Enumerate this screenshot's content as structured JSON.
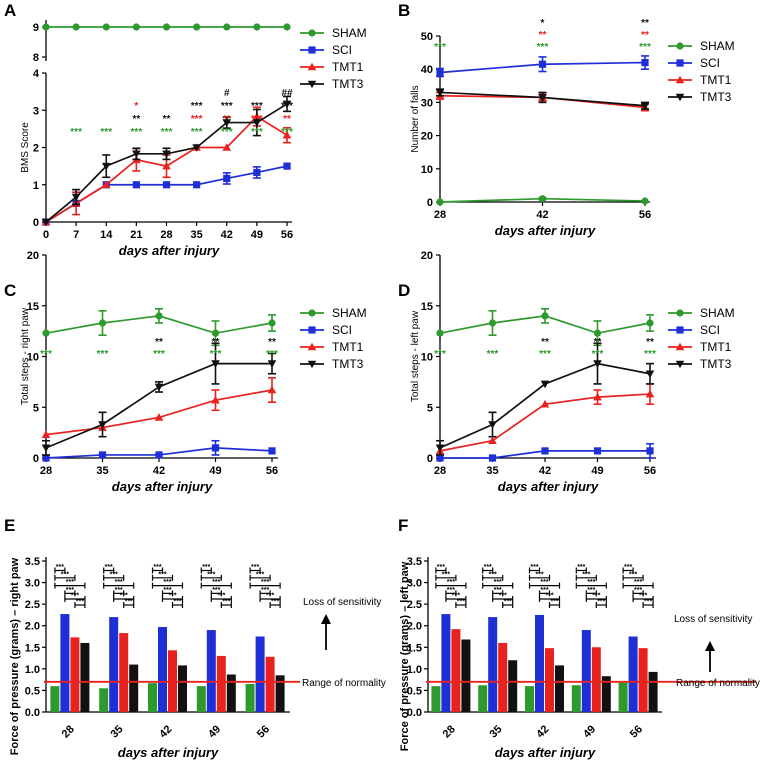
{
  "colors": {
    "SHAM": "#2e9a2e",
    "SCI": "#1f2fd6",
    "TMT1": "#e8221e",
    "TMT3": "#111111",
    "normality": "#e8221e"
  },
  "chart_data": [
    {
      "panel": "A",
      "type": "line",
      "xlabel": "days after injury",
      "ylabel": "BMS Score",
      "x": [
        0,
        7,
        14,
        21,
        28,
        35,
        42,
        49,
        56
      ],
      "xticks": [
        "0",
        "7",
        "14",
        "21",
        "28",
        "35",
        "42",
        "49",
        "56"
      ],
      "ylim": [
        0,
        4
      ],
      "yticks": [
        "0",
        "1",
        "2",
        "3",
        "4"
      ],
      "top_ticks": [
        "8",
        "9"
      ],
      "legend": [
        "SHAM",
        "SCI",
        "TMT1",
        "TMT3"
      ],
      "series": [
        {
          "name": "SHAM",
          "values": [
            9,
            9,
            9,
            9,
            9,
            9,
            9,
            9,
            9
          ],
          "errors": [
            0,
            0,
            0,
            0,
            0,
            0,
            0,
            0,
            0
          ]
        },
        {
          "name": "SCI",
          "values": [
            0,
            0.5,
            1.0,
            1.0,
            1.0,
            1.0,
            1.17,
            1.33,
            1.5
          ],
          "errors": [
            0,
            0,
            0,
            0,
            0,
            0,
            0.15,
            0.15,
            0
          ]
        },
        {
          "name": "TMT1",
          "values": [
            0,
            0.5,
            1.0,
            1.67,
            1.5,
            2.0,
            2.0,
            2.83,
            2.33
          ],
          "errors": [
            0,
            0.3,
            0,
            0.3,
            0.3,
            0,
            0,
            0.25,
            0.2
          ]
        },
        {
          "name": "TMT3",
          "values": [
            0,
            0.67,
            1.5,
            1.83,
            1.83,
            2.0,
            2.67,
            2.67,
            3.17
          ],
          "errors": [
            0,
            0.2,
            0.3,
            0.15,
            0.15,
            0,
            0.15,
            0.35,
            0.2
          ]
        }
      ],
      "annotations": [
        {
          "x": 7,
          "rows": [
            {
              "t": "***",
              "c": "SHAM"
            }
          ]
        },
        {
          "x": 14,
          "rows": [
            {
              "t": "***",
              "c": "SHAM"
            }
          ]
        },
        {
          "x": 21,
          "rows": [
            {
              "t": "*",
              "c": "TMT1"
            },
            {
              "t": "**",
              "c": "TMT3"
            },
            {
              "t": "***",
              "c": "SHAM"
            }
          ]
        },
        {
          "x": 28,
          "rows": [
            {
              "t": "**",
              "c": "TMT3"
            },
            {
              "t": "***",
              "c": "SHAM"
            }
          ]
        },
        {
          "x": 35,
          "rows": [
            {
              "t": "***",
              "c": "TMT3"
            },
            {
              "t": "***",
              "c": "TMT1"
            },
            {
              "t": "***",
              "c": "SHAM"
            }
          ]
        },
        {
          "x": 42,
          "rows": [
            {
              "t": "#",
              "c": "TMT3"
            },
            {
              "t": "***",
              "c": "TMT3"
            },
            {
              "t": "**",
              "c": "TMT1"
            },
            {
              "t": "***",
              "c": "SHAM"
            }
          ]
        },
        {
          "x": 49,
          "rows": [
            {
              "t": "***",
              "c": "TMT3"
            },
            {
              "t": "***",
              "c": "TMT1"
            },
            {
              "t": "***",
              "c": "SHAM"
            }
          ]
        },
        {
          "x": 56,
          "rows": [
            {
              "t": "##",
              "c": "TMT3"
            },
            {
              "t": "***",
              "c": "TMT3"
            },
            {
              "t": "**",
              "c": "TMT1"
            },
            {
              "t": "***",
              "c": "SHAM"
            }
          ]
        }
      ]
    },
    {
      "panel": "B",
      "type": "line",
      "xlabel": "days after injury",
      "ylabel": "Number of falls",
      "x": [
        28,
        42,
        56
      ],
      "xticks": [
        "28",
        "42",
        "56"
      ],
      "ylim": [
        0,
        50
      ],
      "yticks": [
        "0",
        "10",
        "20",
        "30",
        "40",
        "50"
      ],
      "legend": [
        "SHAM",
        "SCI",
        "TMT1",
        "TMT3"
      ],
      "series": [
        {
          "name": "SHAM",
          "values": [
            0,
            1,
            0.3
          ],
          "errors": [
            0,
            0.3,
            0
          ]
        },
        {
          "name": "SCI",
          "values": [
            39,
            41.5,
            42
          ],
          "errors": [
            1.2,
            2.2,
            2.0
          ]
        },
        {
          "name": "TMT1",
          "values": [
            32,
            31.5,
            28.5
          ],
          "errors": [
            1.0,
            1.0,
            1.0
          ]
        },
        {
          "name": "TMT3",
          "values": [
            33,
            31.5,
            29
          ],
          "errors": [
            1.0,
            1.5,
            1.0
          ]
        }
      ],
      "annotations": [
        {
          "x": 28,
          "rows": [
            {
              "t": "***",
              "c": "SHAM"
            }
          ]
        },
        {
          "x": 42,
          "rows": [
            {
              "t": "*",
              "c": "TMT3"
            },
            {
              "t": "**",
              "c": "TMT1"
            },
            {
              "t": "***",
              "c": "SHAM"
            }
          ]
        },
        {
          "x": 56,
          "rows": [
            {
              "t": "**",
              "c": "TMT3"
            },
            {
              "t": "**",
              "c": "TMT1"
            },
            {
              "t": "***",
              "c": "SHAM"
            }
          ]
        }
      ]
    },
    {
      "panel": "C",
      "type": "line",
      "xlabel": "days after injury",
      "ylabel": "Total steps - right paw",
      "x": [
        28,
        35,
        42,
        49,
        56
      ],
      "xticks": [
        "28",
        "35",
        "42",
        "49",
        "56"
      ],
      "ylim": [
        0,
        20
      ],
      "yticks": [
        "0",
        "5",
        "10",
        "15",
        "20"
      ],
      "legend": [
        "SHAM",
        "SCI",
        "TMT1",
        "TMT3"
      ],
      "series": [
        {
          "name": "SHAM",
          "values": [
            12.3,
            13.3,
            14,
            12.3,
            13.3
          ],
          "errors": [
            0,
            1.2,
            0.7,
            1.2,
            0.8
          ]
        },
        {
          "name": "SCI",
          "values": [
            0,
            0.3,
            0.3,
            1.0,
            0.7
          ],
          "errors": [
            0,
            0,
            0,
            0.7,
            0
          ]
        },
        {
          "name": "TMT1",
          "values": [
            2.3,
            3.0,
            4.0,
            5.7,
            6.7
          ],
          "errors": [
            0,
            0,
            0,
            1.0,
            1.2
          ]
        },
        {
          "name": "TMT3",
          "values": [
            1.0,
            3.3,
            7.0,
            9.3,
            9.3
          ],
          "errors": [
            0.7,
            1.2,
            0.5,
            2.0,
            1.0
          ]
        }
      ],
      "annotations": [
        {
          "x": 28,
          "rows": [
            {
              "t": "***",
              "c": "SHAM"
            }
          ]
        },
        {
          "x": 35,
          "rows": [
            {
              "t": "***",
              "c": "SHAM"
            }
          ]
        },
        {
          "x": 42,
          "rows": [
            {
              "t": "**",
              "c": "TMT3"
            },
            {
              "t": "***",
              "c": "SHAM"
            }
          ]
        },
        {
          "x": 49,
          "rows": [
            {
              "t": "**",
              "c": "TMT3"
            },
            {
              "t": "***",
              "c": "SHAM"
            }
          ]
        },
        {
          "x": 56,
          "rows": [
            {
              "t": "**",
              "c": "TMT3"
            },
            {
              "t": "***",
              "c": "SHAM"
            }
          ]
        }
      ]
    },
    {
      "panel": "D",
      "type": "line",
      "xlabel": "days after injury",
      "ylabel": "Total steps - left paw",
      "x": [
        28,
        35,
        42,
        49,
        56
      ],
      "xticks": [
        "28",
        "35",
        "42",
        "49",
        "56"
      ],
      "ylim": [
        0,
        20
      ],
      "yticks": [
        "0",
        "5",
        "10",
        "15",
        "20"
      ],
      "legend": [
        "SHAM",
        "SCI",
        "TMT1",
        "TMT3"
      ],
      "series": [
        {
          "name": "SHAM",
          "values": [
            12.3,
            13.3,
            14,
            12.3,
            13.3
          ],
          "errors": [
            0,
            1.2,
            0.7,
            1.2,
            0.8
          ]
        },
        {
          "name": "SCI",
          "values": [
            0,
            0,
            0.7,
            0.7,
            0.7
          ],
          "errors": [
            0,
            0,
            0,
            0,
            0.7
          ]
        },
        {
          "name": "TMT1",
          "values": [
            0.7,
            1.7,
            5.3,
            6.0,
            6.3
          ],
          "errors": [
            0,
            0,
            0,
            0.7,
            1.0
          ]
        },
        {
          "name": "TMT3",
          "values": [
            1.0,
            3.3,
            7.3,
            9.3,
            8.3
          ],
          "errors": [
            0.7,
            1.2,
            0,
            2.0,
            1.0
          ]
        }
      ],
      "annotations": [
        {
          "x": 28,
          "rows": [
            {
              "t": "***",
              "c": "SHAM"
            }
          ]
        },
        {
          "x": 35,
          "rows": [
            {
              "t": "***",
              "c": "SHAM"
            }
          ]
        },
        {
          "x": 42,
          "rows": [
            {
              "t": "**",
              "c": "TMT3"
            },
            {
              "t": "***",
              "c": "SHAM"
            }
          ]
        },
        {
          "x": 49,
          "rows": [
            {
              "t": "**",
              "c": "TMT3"
            },
            {
              "t": "***",
              "c": "SHAM"
            }
          ]
        },
        {
          "x": 56,
          "rows": [
            {
              "t": "**",
              "c": "TMT3"
            },
            {
              "t": "***",
              "c": "SHAM"
            }
          ]
        }
      ]
    },
    {
      "panel": "E",
      "type": "bar",
      "xlabel": "days after injury",
      "ylabel": "Force of pressure (grams) – right paw",
      "categories": [
        "28",
        "35",
        "42",
        "49",
        "56"
      ],
      "ylim": [
        0,
        3.5
      ],
      "yticks": [
        "0.0",
        "0.5",
        "1.0",
        "1.5",
        "2.0",
        "2.5",
        "3.0",
        "3.5"
      ],
      "series": [
        {
          "name": "SHAM",
          "values": [
            0.6,
            0.55,
            0.67,
            0.6,
            0.65
          ]
        },
        {
          "name": "SCI",
          "values": [
            2.27,
            2.2,
            1.97,
            1.9,
            1.75
          ]
        },
        {
          "name": "TMT1",
          "values": [
            1.73,
            1.83,
            1.43,
            1.3,
            1.28
          ]
        },
        {
          "name": "TMT3",
          "values": [
            1.6,
            1.1,
            1.08,
            0.87,
            0.85
          ]
        }
      ],
      "normality": 0.7,
      "normality_label": "Range of normality",
      "sensitivity_label": "Loss of sensitivity",
      "sig_label": "***"
    },
    {
      "panel": "F",
      "type": "bar",
      "xlabel": "days after injury",
      "ylabel": "Force of pressure (grams) – left paw",
      "categories": [
        "28",
        "35",
        "42",
        "49",
        "56"
      ],
      "ylim": [
        0,
        3.5
      ],
      "yticks": [
        "0.0",
        "0.5",
        "1.0",
        "1.5",
        "2.0",
        "2.5",
        "3.0",
        "3.5"
      ],
      "series": [
        {
          "name": "SHAM",
          "values": [
            0.6,
            0.62,
            0.6,
            0.62,
            0.68
          ]
        },
        {
          "name": "SCI",
          "values": [
            2.27,
            2.2,
            2.25,
            1.9,
            1.75
          ]
        },
        {
          "name": "TMT1",
          "values": [
            1.92,
            1.6,
            1.48,
            1.5,
            1.48
          ]
        },
        {
          "name": "TMT3",
          "values": [
            1.68,
            1.2,
            1.08,
            0.83,
            0.93
          ]
        }
      ],
      "normality": 0.7,
      "normality_label": "Range of normality",
      "sensitivity_label": "Loss of sensitivity",
      "sig_label": "***"
    }
  ]
}
